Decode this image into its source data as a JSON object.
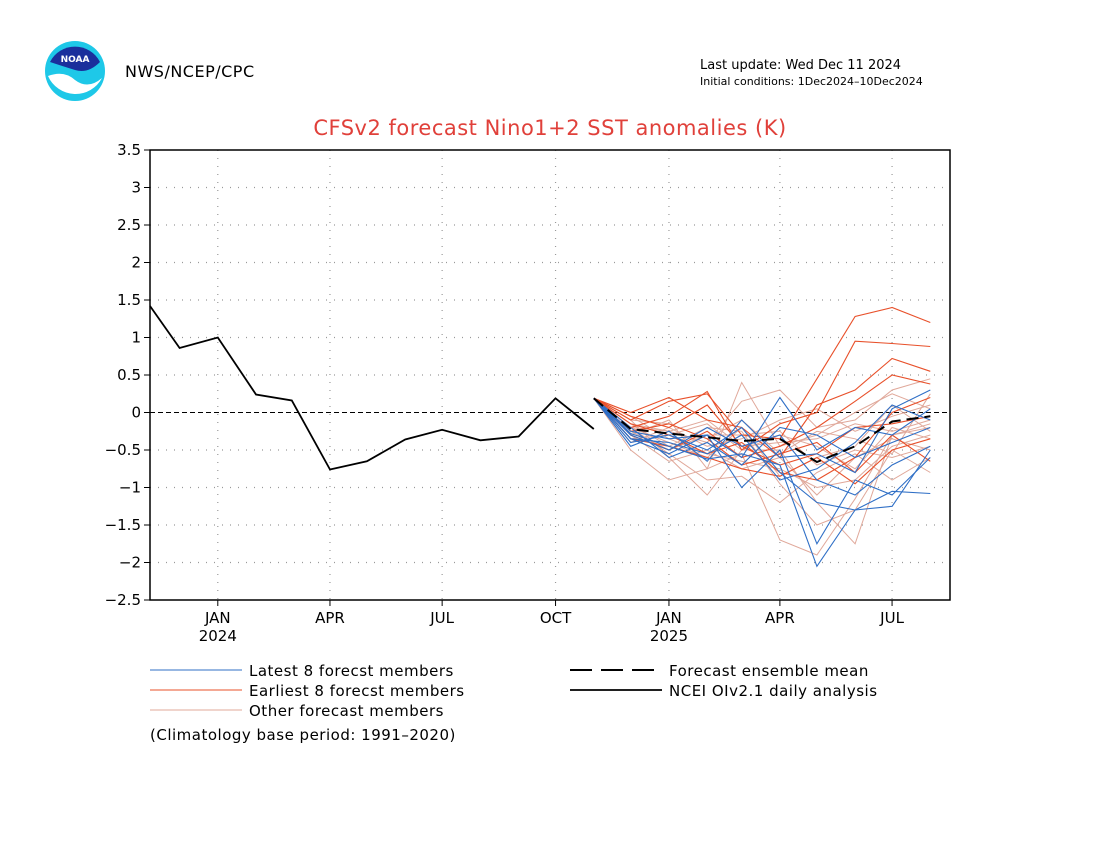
{
  "header": {
    "agency": "NWS/NCEP/CPC",
    "last_update": "Last update: Wed Dec 11 2024",
    "initial_conditions": "Initial conditions: 1Dec2024–10Dec2024",
    "logo_text": "NOAA"
  },
  "chart_data": {
    "type": "line",
    "title": "CFSv2 forecast Nino1+2 SST anomalies (K)",
    "ylim": [
      -2.5,
      3.5
    ],
    "yticks": [
      -2.5,
      -2,
      -1.5,
      -1,
      -0.5,
      0,
      0.5,
      1,
      1.5,
      2,
      2.5,
      3,
      3.5
    ],
    "ytick_labels": [
      "−2.5",
      "−2",
      "−1.5",
      "−1",
      "−0.5",
      "0",
      "0.5",
      "1",
      "1.5",
      "2",
      "2.5",
      "3",
      "3.5"
    ],
    "xlim": [
      "2023-11-21",
      "2025-08-31"
    ],
    "xticks": [
      {
        "date": "2024-01-15",
        "label": "JAN",
        "year": "2024"
      },
      {
        "date": "2024-04-15",
        "label": "APR",
        "year": ""
      },
      {
        "date": "2024-07-15",
        "label": "JUL",
        "year": ""
      },
      {
        "date": "2024-10-15",
        "label": "OCT",
        "year": ""
      },
      {
        "date": "2025-01-15",
        "label": "JAN",
        "year": "2025"
      },
      {
        "date": "2025-04-15",
        "label": "APR",
        "year": ""
      },
      {
        "date": "2025-07-15",
        "label": "JUL",
        "year": ""
      }
    ],
    "grid": true,
    "zero_line": true,
    "colors": {
      "title": "#e0403a",
      "latest": "#2f6fc6",
      "earliest": "#e8502a",
      "other": "#e0a89a",
      "mean": "#000000",
      "observed": "#000000"
    },
    "forecast_x": [
      "2024-11-15",
      "2024-12-15",
      "2025-01-15",
      "2025-02-15",
      "2025-03-15",
      "2025-04-15",
      "2025-05-15",
      "2025-06-15",
      "2025-07-15",
      "2025-08-15"
    ],
    "series": [
      {
        "name": "NCEI OIv2.1 daily analysis",
        "group": "observed",
        "x": [
          "2023-11-21",
          "2023-12-15",
          "2024-01-15",
          "2024-02-15",
          "2024-03-15",
          "2024-04-15",
          "2024-05-15",
          "2024-06-15",
          "2024-07-15",
          "2024-08-15",
          "2024-09-15",
          "2024-10-15",
          "2024-11-15"
        ],
        "values": [
          1.42,
          0.86,
          1.0,
          0.24,
          0.16,
          -0.76,
          -0.65,
          -0.36,
          -0.23,
          -0.37,
          -0.32,
          0.19,
          -0.22
        ]
      },
      {
        "name": "Forecast ensemble mean",
        "group": "mean",
        "values": [
          0.19,
          -0.22,
          -0.28,
          -0.33,
          -0.38,
          -0.35,
          -0.66,
          -0.45,
          -0.12,
          -0.05
        ]
      },
      {
        "group": "latest",
        "values": [
          0.19,
          -0.28,
          -0.45,
          -0.62,
          -0.55,
          -0.7,
          -2.05,
          -1.3,
          -1.05,
          -1.08
        ]
      },
      {
        "group": "latest",
        "values": [
          0.19,
          -0.35,
          -0.55,
          -0.3,
          -1.0,
          -0.5,
          -1.75,
          -0.9,
          -1.1,
          -0.6
        ]
      },
      {
        "group": "latest",
        "values": [
          0.19,
          -0.4,
          -0.3,
          -0.5,
          -0.2,
          -0.8,
          -1.2,
          -1.3,
          -1.25,
          -0.5
        ]
      },
      {
        "group": "latest",
        "values": [
          0.19,
          -0.3,
          -0.5,
          -0.2,
          -0.45,
          -0.3,
          -0.9,
          -1.1,
          -0.7,
          -0.45
        ]
      },
      {
        "group": "latest",
        "values": [
          0.19,
          -0.45,
          -0.25,
          -0.65,
          -0.1,
          -0.6,
          -0.55,
          -0.8,
          0.05,
          0.3
        ]
      },
      {
        "group": "latest",
        "values": [
          0.19,
          -0.2,
          -0.6,
          -0.4,
          -0.7,
          -0.2,
          -0.3,
          -0.6,
          -0.4,
          -0.2
        ]
      },
      {
        "group": "latest",
        "values": [
          0.19,
          -0.35,
          -0.4,
          -0.55,
          -0.3,
          -0.9,
          -0.75,
          -0.4,
          0.1,
          -0.1
        ]
      },
      {
        "group": "latest",
        "values": [
          0.19,
          -0.25,
          -0.35,
          -0.3,
          -0.6,
          0.2,
          -0.5,
          -0.2,
          -0.3,
          0.05
        ]
      },
      {
        "group": "earliest",
        "values": [
          0.19,
          -0.1,
          0.15,
          0.25,
          -0.3,
          -0.35,
          0.45,
          1.28,
          1.4,
          1.2
        ]
      },
      {
        "group": "earliest",
        "values": [
          0.19,
          -0.2,
          -0.05,
          0.28,
          -0.5,
          -0.15,
          0.0,
          0.95,
          0.92,
          0.88
        ]
      },
      {
        "group": "earliest",
        "values": [
          0.19,
          0.0,
          0.2,
          -0.1,
          -0.2,
          -0.6,
          0.1,
          0.3,
          0.72,
          0.55
        ]
      },
      {
        "group": "earliest",
        "values": [
          0.19,
          -0.3,
          -0.5,
          -0.25,
          -0.6,
          -0.45,
          -0.2,
          0.15,
          0.5,
          0.38
        ]
      },
      {
        "group": "earliest",
        "values": [
          0.19,
          -0.15,
          -0.3,
          -0.55,
          -0.4,
          -0.8,
          -0.9,
          -0.6,
          0.0,
          0.2
        ]
      },
      {
        "group": "earliest",
        "values": [
          0.19,
          -0.25,
          -0.15,
          -0.35,
          -0.7,
          -0.55,
          -0.4,
          -0.8,
          -0.3,
          -0.65
        ]
      },
      {
        "group": "earliest",
        "values": [
          0.19,
          -0.05,
          -0.2,
          0.1,
          -0.45,
          -0.7,
          -0.55,
          -0.2,
          -0.15,
          -0.05
        ]
      },
      {
        "group": "earliest",
        "values": [
          0.19,
          -0.35,
          -0.45,
          -0.6,
          -0.75,
          -0.85,
          -0.6,
          -0.95,
          -0.5,
          -0.35
        ]
      },
      {
        "group": "other",
        "values": [
          0.19,
          -0.1,
          -0.6,
          -1.1,
          -0.5,
          -0.5,
          -1.2,
          -1.75,
          -0.3,
          -0.2
        ]
      },
      {
        "group": "other",
        "values": [
          0.19,
          -0.5,
          -0.9,
          -0.75,
          -0.55,
          -1.7,
          -1.9,
          -1.15,
          -0.3,
          -0.15
        ]
      },
      {
        "group": "other",
        "values": [
          0.19,
          -0.2,
          -0.25,
          -0.4,
          0.15,
          0.3,
          -0.2,
          -0.1,
          0.3,
          0.45
        ]
      },
      {
        "group": "other",
        "values": [
          0.19,
          -0.15,
          -0.45,
          -0.2,
          -0.25,
          -0.95,
          -1.5,
          -1.3,
          -0.5,
          -0.8
        ]
      },
      {
        "group": "other",
        "values": [
          0.19,
          -0.3,
          -0.1,
          -0.75,
          0.4,
          -0.45,
          -0.3,
          0.0,
          0.25,
          0.05
        ]
      },
      {
        "group": "other",
        "values": [
          0.19,
          -0.25,
          -0.5,
          -0.3,
          -0.3,
          -0.25,
          -0.7,
          -0.5,
          -0.6,
          -0.45
        ]
      },
      {
        "group": "other",
        "values": [
          0.19,
          -0.05,
          -0.35,
          -0.55,
          -0.65,
          -0.75,
          -1.0,
          -0.9,
          -0.45,
          -0.3
        ]
      },
      {
        "group": "other",
        "values": [
          0.19,
          -0.4,
          -0.2,
          -0.45,
          -0.35,
          -0.1,
          0.05,
          -0.25,
          -0.05,
          0.1
        ]
      },
      {
        "group": "other",
        "values": [
          0.19,
          -0.2,
          -0.55,
          -0.9,
          -0.85,
          -1.2,
          -0.8,
          -0.55,
          -0.9,
          -0.6
        ]
      },
      {
        "group": "other",
        "values": [
          0.19,
          -0.35,
          -0.3,
          -0.15,
          -0.5,
          -0.3,
          -0.45,
          -0.75,
          -0.2,
          -0.35
        ]
      },
      {
        "group": "other",
        "values": [
          0.19,
          -0.1,
          -0.15,
          -0.35,
          -0.1,
          -0.55,
          -0.25,
          -0.35,
          -0.55,
          0.25
        ]
      },
      {
        "group": "other",
        "values": [
          0.19,
          -0.3,
          -0.65,
          -0.5,
          -0.75,
          -0.6,
          -1.1,
          -0.6,
          -0.35,
          -0.5
        ]
      },
      {
        "group": "other",
        "values": [
          0.19,
          -0.2,
          -0.4,
          -0.6,
          -0.2,
          -0.85,
          -0.6,
          -0.45,
          0.1,
          -0.25
        ]
      },
      {
        "group": "other",
        "values": [
          0.19,
          -0.15,
          -0.25,
          -0.1,
          -0.45,
          -0.4,
          -0.35,
          -0.15,
          -0.25,
          -0.1
        ]
      }
    ],
    "legend": [
      {
        "label": "Latest 8 forecst members",
        "group": "latest"
      },
      {
        "label": "Earliest 8 forecst members",
        "group": "earliest"
      },
      {
        "label": "Other forecast members",
        "group": "other"
      },
      {
        "label": "Forecast ensemble mean",
        "group": "mean"
      },
      {
        "label": "NCEI OIv2.1 daily analysis",
        "group": "observed"
      }
    ],
    "footnote": "(Climatology base period: 1991–2020)"
  }
}
